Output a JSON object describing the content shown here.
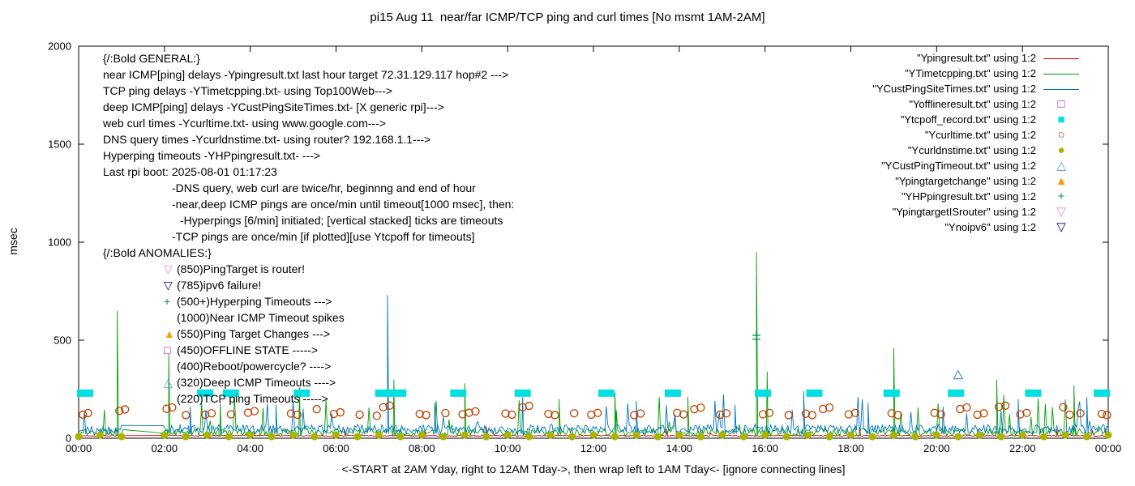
{
  "legend": {
    "items": [
      {
        "label": "\"Ypingresult.txt\" using 1:2",
        "sample": "line",
        "color": "#dd0000"
      },
      {
        "label": "\"YTimetcpping.txt\" using 1:2",
        "sample": "line",
        "color": "#00a000"
      },
      {
        "label": "\"YCustPingSiteTimes.txt\" using 1:2",
        "sample": "line",
        "color": "#0072c6"
      },
      {
        "label": "\"Yofflineresult.txt\" using 1:2",
        "sample": "square-open",
        "color": "#c000c0"
      },
      {
        "label": "\"Ytcpoff_record.txt\" using 1:2",
        "sample": "square-filled",
        "color": "#00e0e0"
      },
      {
        "label": "\"Ycurltime.txt\" using 1:2",
        "sample": "circle-open",
        "color": "#c04000"
      },
      {
        "label": "\"Ycurldnstime.txt\" using 1:2",
        "sample": "circle-filled",
        "color": "#aab400"
      },
      {
        "label": "\"YCustPingTimeout.txt\" using 1:2",
        "sample": "tri-up-open",
        "color": "#5599dd"
      },
      {
        "label": "\"Ypingtargetchange\" using 1:2",
        "sample": "tri-up-filled",
        "color": "#ff9900"
      },
      {
        "label": "\"YHPpingresult.txt\" using 1:2",
        "sample": "plus",
        "color": "#009944"
      },
      {
        "label": "\"YpingtargetISrouter\" using 1:2",
        "sample": "tri-down-open",
        "color": "#ee82ee"
      },
      {
        "label": "\"Ynoipv6\" using 1:2",
        "sample": "tri-down-open",
        "color": "#000088"
      }
    ]
  },
  "annotations": {
    "general": {
      "lines": [
        {
          "text": "{/:Bold GENERAL:}",
          "indent": 0
        },
        {
          "text": "near ICMP[ping] delays -Ypingresult.txt last hour target 72.31.129.117 hop#2 --->",
          "indent": 0
        },
        {
          "text": "TCP ping delays -YTimetcpping.txt- using Top100Web--->",
          "indent": 0
        },
        {
          "text": "deep ICMP[ping] delays -YCustPingSiteTimes.txt- [X generic rpi]--->",
          "indent": 0
        },
        {
          "text": "web curl times -Ycurltime.txt- using www.google.com--->",
          "indent": 0
        },
        {
          "text": "DNS query times -Ycurldnstime.txt- using router? 192.168.1.1--->",
          "indent": 0
        },
        {
          "text": "Hyperping timeouts -YHPpingresult.txt- --->",
          "indent": 0
        },
        {
          "text": "Last rpi boot: 2025-08-01 01:17:23",
          "indent": 0
        },
        {
          "text": "-DNS query, web curl are twice/hr, beginnng and end of hour",
          "indent": 1
        },
        {
          "text": "-near,deep ICMP pings are once/min until timeout[1000 msec], then:",
          "indent": 1
        },
        {
          "text": "-Hyperpings [6/min] initiated; [vertical stacked] ticks are timeouts",
          "indent": 2
        },
        {
          "text": "-TCP pings are once/min [if plotted][use Ytcpoff for timeouts]",
          "indent": 1
        }
      ]
    },
    "anomalies": {
      "lines": [
        {
          "text": "{/:Bold ANOMALIES:}",
          "indent": 0
        },
        {
          "text": "(850)PingTarget is router!",
          "indent": 1,
          "marker": "tri-down-open",
          "color": "#ee82ee"
        },
        {
          "text": "(785)ipv6 failure!",
          "indent": 1,
          "marker": "tri-down-open",
          "color": "#000088"
        },
        {
          "text": "(500+)Hyperping Timeouts --->",
          "indent": 1,
          "marker": "plus",
          "color": "#009944"
        },
        {
          "text": "(1000)Near ICMP Timeout spikes",
          "indent": 1
        },
        {
          "text": "(550)Ping Target Changes --->",
          "indent": 1,
          "marker": "tri-up-filled",
          "color": "#ff9900"
        },
        {
          "text": "(450)OFFLINE STATE ----->",
          "indent": 1,
          "marker": "square-open",
          "color": "#c000c0"
        },
        {
          "text": "(400)Reboot/powercycle? ---->",
          "indent": 1
        },
        {
          "text": "(320)Deep ICMP Timeouts ---->",
          "indent": 1,
          "marker": "tri-up-open",
          "color": "#5599dd"
        },
        {
          "text": "(220)TCP ping Timeouts ----->",
          "indent": 1
        }
      ]
    }
  },
  "chart_data": {
    "type": "line",
    "title": "pi15 Aug 11  near/far ICMP/TCP ping and curl times [No msmt 1AM-2AM]",
    "xlabel": "<-START at 2AM Yday, right to 12AM Tday->, then wrap left to 1AM Tday<- [ignore connecting lines]",
    "ylabel": "msec",
    "xlim": [
      0,
      24
    ],
    "ylim": [
      0,
      2000
    ],
    "grid": false,
    "legend_position": "top-right-outside-plot",
    "x_ticks": [
      {
        "v": 0,
        "label": "00:00"
      },
      {
        "v": 2,
        "label": "02:00"
      },
      {
        "v": 4,
        "label": "04:00"
      },
      {
        "v": 6,
        "label": "06:00"
      },
      {
        "v": 8,
        "label": "08:00"
      },
      {
        "v": 10,
        "label": "10:00"
      },
      {
        "v": 12,
        "label": "12:00"
      },
      {
        "v": 14,
        "label": "14:00"
      },
      {
        "v": 16,
        "label": "16:00"
      },
      {
        "v": 18,
        "label": "18:00"
      },
      {
        "v": 20,
        "label": "20:00"
      },
      {
        "v": 22,
        "label": "22:00"
      },
      {
        "v": 24,
        "label": "00:00"
      }
    ],
    "y_ticks": [
      0,
      500,
      1000,
      1500,
      2000
    ],
    "no_measurement_gap": [
      1.05,
      1.95
    ],
    "series": [
      {
        "name": "Ypingresult.txt",
        "style": "line",
        "color": "#dd0000",
        "baseline": 10,
        "noise": 6,
        "spike_prob": 0.004,
        "spike_amp": 25,
        "seed": 7,
        "spikes": [
          [
            6.2,
            45
          ],
          [
            9.5,
            60
          ],
          [
            13.7,
            50
          ],
          [
            18.2,
            55
          ],
          [
            22.8,
            45
          ]
        ]
      },
      {
        "name": "YTimetcpping.txt",
        "style": "line",
        "color": "#00a000",
        "baseline": 12,
        "noise": 38,
        "spike_prob": 0.04,
        "spike_amp": 200,
        "seed": 13,
        "spikes": [
          [
            0.9,
            650
          ],
          [
            2.1,
            430
          ],
          [
            3.3,
            180
          ],
          [
            5.15,
            260
          ],
          [
            7.35,
            300
          ],
          [
            9.0,
            280
          ],
          [
            11.2,
            200
          ],
          [
            12.5,
            230
          ],
          [
            14.2,
            210
          ],
          [
            15.8,
            950
          ],
          [
            16.05,
            340
          ],
          [
            19.0,
            460
          ],
          [
            21.4,
            300
          ],
          [
            23.2,
            270
          ]
        ]
      },
      {
        "name": "YCustPingSiteTimes.txt",
        "style": "line",
        "color": "#0072c6",
        "baseline": 22,
        "noise": 48,
        "spike_prob": 0.05,
        "spike_amp": 160,
        "seed": 29,
        "spikes": [
          [
            2.6,
            160
          ],
          [
            4.6,
            170
          ],
          [
            7.2,
            730
          ],
          [
            8.3,
            180
          ],
          [
            10.35,
            210
          ],
          [
            13.0,
            190
          ],
          [
            15.3,
            170
          ],
          [
            16.9,
            240
          ],
          [
            18.4,
            180
          ],
          [
            20.15,
            160
          ],
          [
            21.9,
            200
          ],
          [
            23.5,
            210
          ]
        ]
      },
      {
        "name": "Yofflineresult.txt",
        "style": "square-open",
        "color": "#c000c0",
        "points": []
      },
      {
        "name": "Ytcpoff_record.txt",
        "style": "rect-filled",
        "color": "#00e0e0",
        "points": [
          [
            0.15,
            230
          ],
          [
            2.95,
            230
          ],
          [
            3.55,
            230
          ],
          [
            5.2,
            230
          ],
          [
            7.1,
            230
          ],
          [
            7.45,
            230
          ],
          [
            8.85,
            230
          ],
          [
            10.35,
            230
          ],
          [
            12.3,
            230
          ],
          [
            13.85,
            230
          ],
          [
            15.95,
            230
          ],
          [
            17.15,
            230
          ],
          [
            18.95,
            230
          ],
          [
            20.45,
            230
          ],
          [
            22.25,
            230
          ],
          [
            23.85,
            230
          ]
        ]
      },
      {
        "name": "Ycurltime.txt",
        "style": "circle-open",
        "color": "#c04000",
        "points": [
          [
            0.1,
            120
          ],
          [
            0.22,
            128
          ],
          [
            0.95,
            140
          ],
          [
            1.08,
            147
          ],
          [
            2.05,
            150
          ],
          [
            2.18,
            157
          ],
          [
            2.5,
            118
          ],
          [
            2.95,
            120
          ],
          [
            3.1,
            127
          ],
          [
            3.55,
            122
          ],
          [
            3.95,
            130
          ],
          [
            4.1,
            138
          ],
          [
            4.95,
            126
          ],
          [
            5.1,
            120
          ],
          [
            5.55,
            148
          ],
          [
            5.95,
            124
          ],
          [
            6.1,
            132
          ],
          [
            6.55,
            120
          ],
          [
            6.95,
            114
          ],
          [
            7.1,
            158
          ],
          [
            7.25,
            166
          ],
          [
            7.95,
            124
          ],
          [
            8.1,
            118
          ],
          [
            8.55,
            128
          ],
          [
            8.95,
            122
          ],
          [
            9.1,
            130
          ],
          [
            9.25,
            137
          ],
          [
            9.95,
            126
          ],
          [
            10.1,
            120
          ],
          [
            10.35,
            158
          ],
          [
            10.5,
            165
          ],
          [
            10.95,
            124
          ],
          [
            11.1,
            118
          ],
          [
            11.55,
            127
          ],
          [
            11.95,
            120
          ],
          [
            12.1,
            129
          ],
          [
            12.95,
            118
          ],
          [
            13.1,
            126
          ],
          [
            13.95,
            129
          ],
          [
            14.1,
            122
          ],
          [
            14.35,
            148
          ],
          [
            14.5,
            156
          ],
          [
            14.95,
            120
          ],
          [
            15.1,
            127
          ],
          [
            15.95,
            122
          ],
          [
            16.1,
            129
          ],
          [
            16.55,
            118
          ],
          [
            16.95,
            125
          ],
          [
            17.1,
            118
          ],
          [
            17.35,
            149
          ],
          [
            17.5,
            157
          ],
          [
            17.95,
            122
          ],
          [
            18.1,
            129
          ],
          [
            18.95,
            127
          ],
          [
            19.1,
            118
          ],
          [
            19.95,
            129
          ],
          [
            20.1,
            122
          ],
          [
            20.55,
            149
          ],
          [
            20.7,
            157
          ],
          [
            20.95,
            120
          ],
          [
            21.1,
            127
          ],
          [
            21.45,
            160
          ],
          [
            21.6,
            166
          ],
          [
            21.95,
            122
          ],
          [
            22.1,
            129
          ],
          [
            22.95,
            158
          ],
          [
            23.1,
            120
          ],
          [
            23.35,
            127
          ],
          [
            23.85,
            124
          ],
          [
            23.97,
            118
          ]
        ]
      },
      {
        "name": "Ycurldnstime.txt",
        "style": "circle-filled",
        "color": "#aab400",
        "points": [
          [
            0,
            8
          ],
          [
            0.5,
            16
          ],
          [
            1,
            8
          ],
          [
            2,
            16
          ],
          [
            2.5,
            8
          ],
          [
            3,
            16
          ],
          [
            3.5,
            8
          ],
          [
            4,
            16
          ],
          [
            4.5,
            8
          ],
          [
            5,
            16
          ],
          [
            5.5,
            8
          ],
          [
            6,
            16
          ],
          [
            6.5,
            8
          ],
          [
            7,
            16
          ],
          [
            7.5,
            8
          ],
          [
            8,
            16
          ],
          [
            8.5,
            8
          ],
          [
            9,
            16
          ],
          [
            9.5,
            8
          ],
          [
            10,
            16
          ],
          [
            10.5,
            8
          ],
          [
            11,
            16
          ],
          [
            11.5,
            8
          ],
          [
            12,
            16
          ],
          [
            12.5,
            8
          ],
          [
            13,
            16
          ],
          [
            13.5,
            8
          ],
          [
            14,
            16
          ],
          [
            14.5,
            8
          ],
          [
            15,
            16
          ],
          [
            15.5,
            8
          ],
          [
            16,
            16
          ],
          [
            16.5,
            8
          ],
          [
            17,
            16
          ],
          [
            17.5,
            8
          ],
          [
            18,
            16
          ],
          [
            18.5,
            8
          ],
          [
            19,
            16
          ],
          [
            19.5,
            8
          ],
          [
            20,
            16
          ],
          [
            20.5,
            8
          ],
          [
            21,
            16
          ],
          [
            21.5,
            8
          ],
          [
            22,
            16
          ],
          [
            22.5,
            8
          ],
          [
            23,
            16
          ],
          [
            23.5,
            8
          ],
          [
            24,
            16
          ]
        ]
      },
      {
        "name": "YCustPingTimeout.txt",
        "style": "tri-up-open",
        "color": "#5599dd",
        "points": [
          [
            20.5,
            320
          ]
        ]
      },
      {
        "name": "Ypingtargetchange",
        "style": "tri-up-filled",
        "color": "#ff9900",
        "points": []
      },
      {
        "name": "YHPpingresult.txt",
        "style": "plus",
        "color": "#009944",
        "points": [
          [
            15.8,
            505
          ],
          [
            15.8,
            525
          ]
        ]
      },
      {
        "name": "YpingtargetISrouter",
        "style": "tri-down-open",
        "color": "#ee82ee",
        "points": []
      },
      {
        "name": "Ynoipv6",
        "style": "tri-down-open",
        "color": "#000088",
        "points": []
      }
    ]
  }
}
